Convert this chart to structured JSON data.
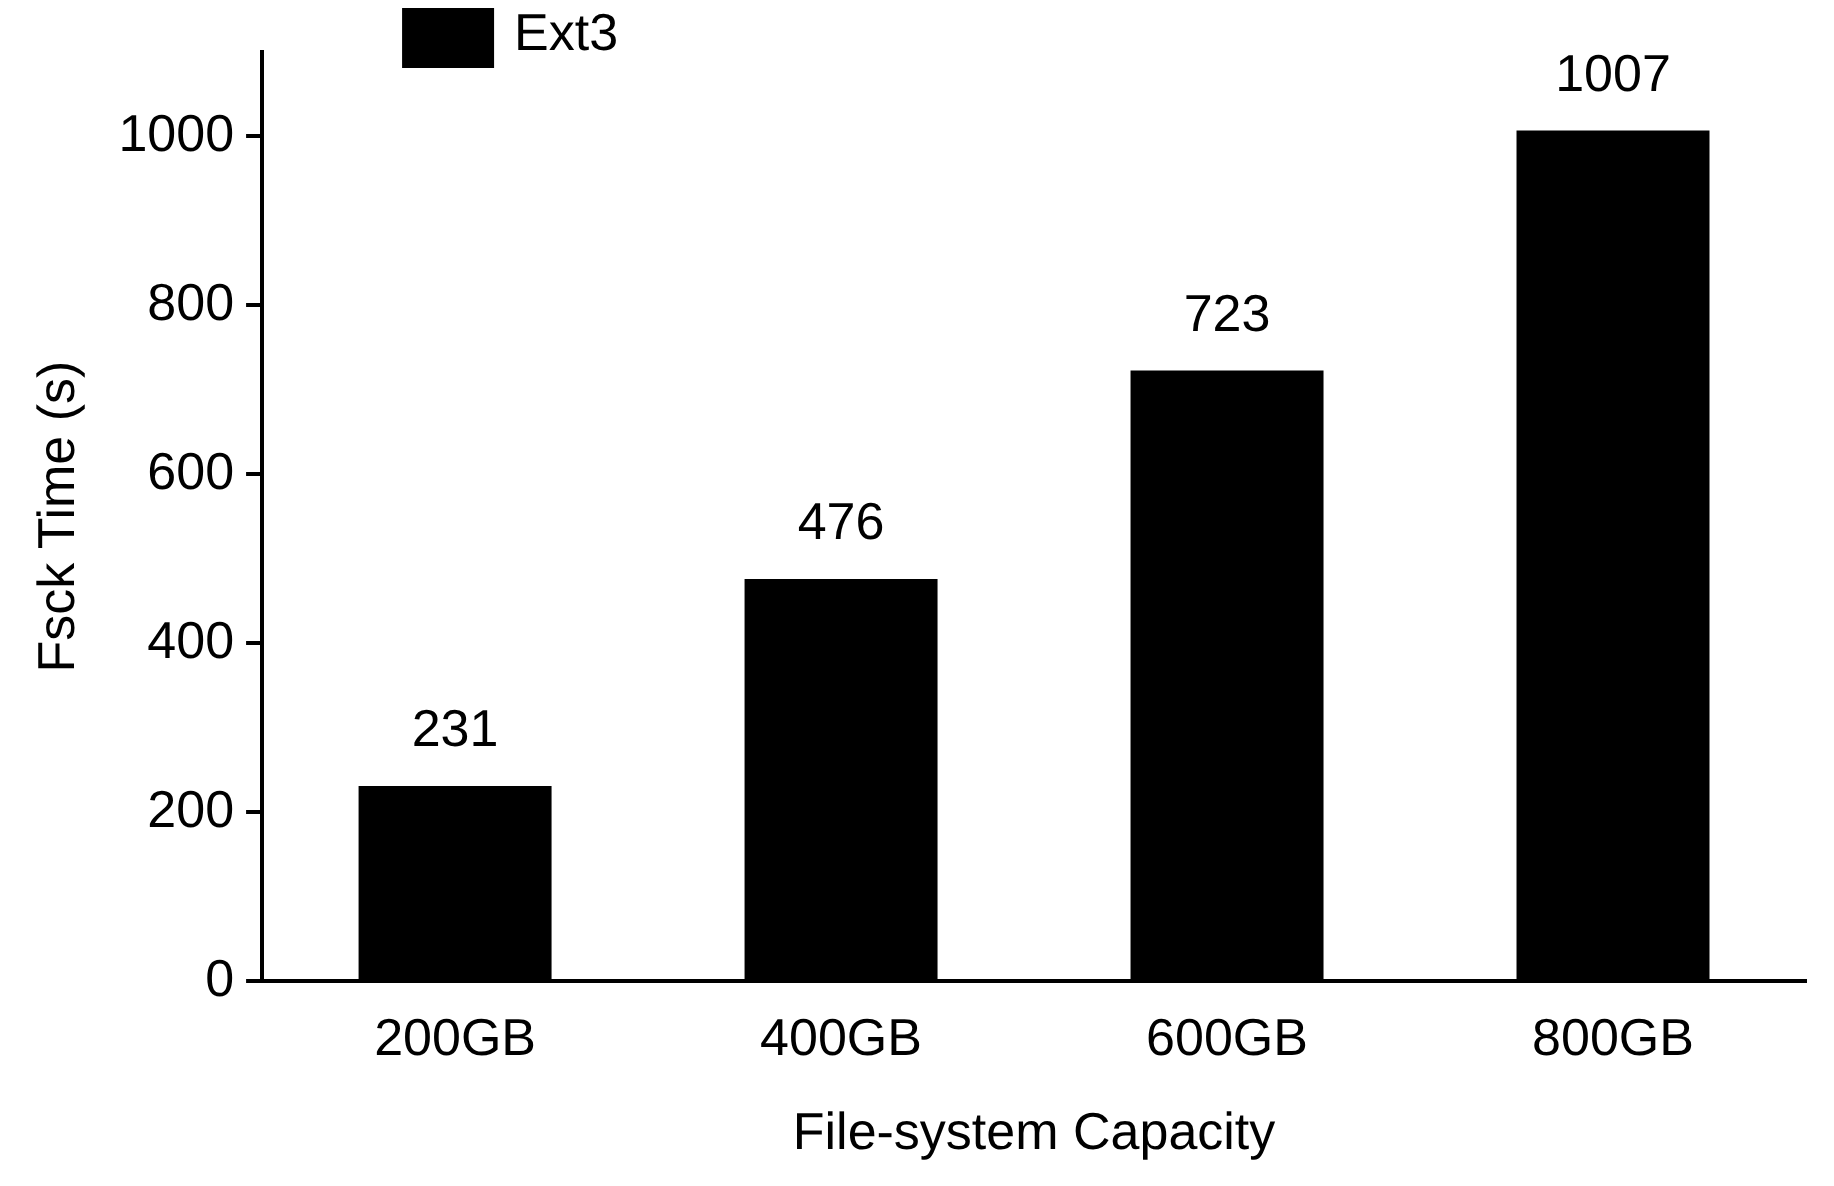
{
  "chart_data": {
    "type": "bar",
    "xlabel": "File-system Capacity",
    "ylabel": "Fsck Time (s)",
    "categories": [
      "200GB",
      "400GB",
      "600GB",
      "800GB"
    ],
    "series": [
      {
        "name": "Ext3",
        "color": "#000000",
        "values": [
          231,
          476,
          723,
          1007
        ]
      }
    ],
    "ylim": [
      0,
      1100
    ],
    "yticks": [
      0,
      200,
      400,
      600,
      800,
      1000
    ],
    "grid": false,
    "legend": "top left",
    "data_labels": true
  }
}
